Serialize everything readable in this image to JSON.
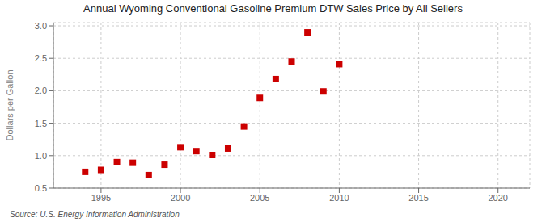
{
  "chart_data": {
    "type": "scatter",
    "title": "Annual Wyoming Conventional Gasoline Premium DTW Sales Price by All Sellers",
    "y_label": "Dollars per Gallon",
    "annotations": [
      "Source: U.S. Energy Information Administration"
    ],
    "x": [
      1994,
      1995,
      1996,
      1997,
      1998,
      1999,
      2000,
      2001,
      2002,
      2003,
      2004,
      2005,
      2006,
      2007,
      2008,
      2009,
      2010
    ],
    "values": [
      0.75,
      0.78,
      0.9,
      0.89,
      0.7,
      0.86,
      1.13,
      1.07,
      1.01,
      1.11,
      1.45,
      1.89,
      2.18,
      2.45,
      2.9,
      1.99,
      2.41
    ],
    "color": "#cc0000",
    "marker": "square",
    "xlim": [
      1992,
      2022
    ],
    "ylim": [
      0.5,
      3.05
    ],
    "xticks": [
      1995,
      2000,
      2005,
      2010,
      2015,
      2020
    ],
    "yticks": [
      0.5,
      {
        "value": 1,
        "label": "1.0"
      },
      1.5,
      {
        "value": 2,
        "label": "2.0"
      },
      2.5,
      {
        "value": 3,
        "label": "3.0"
      }
    ],
    "grid": true
  }
}
